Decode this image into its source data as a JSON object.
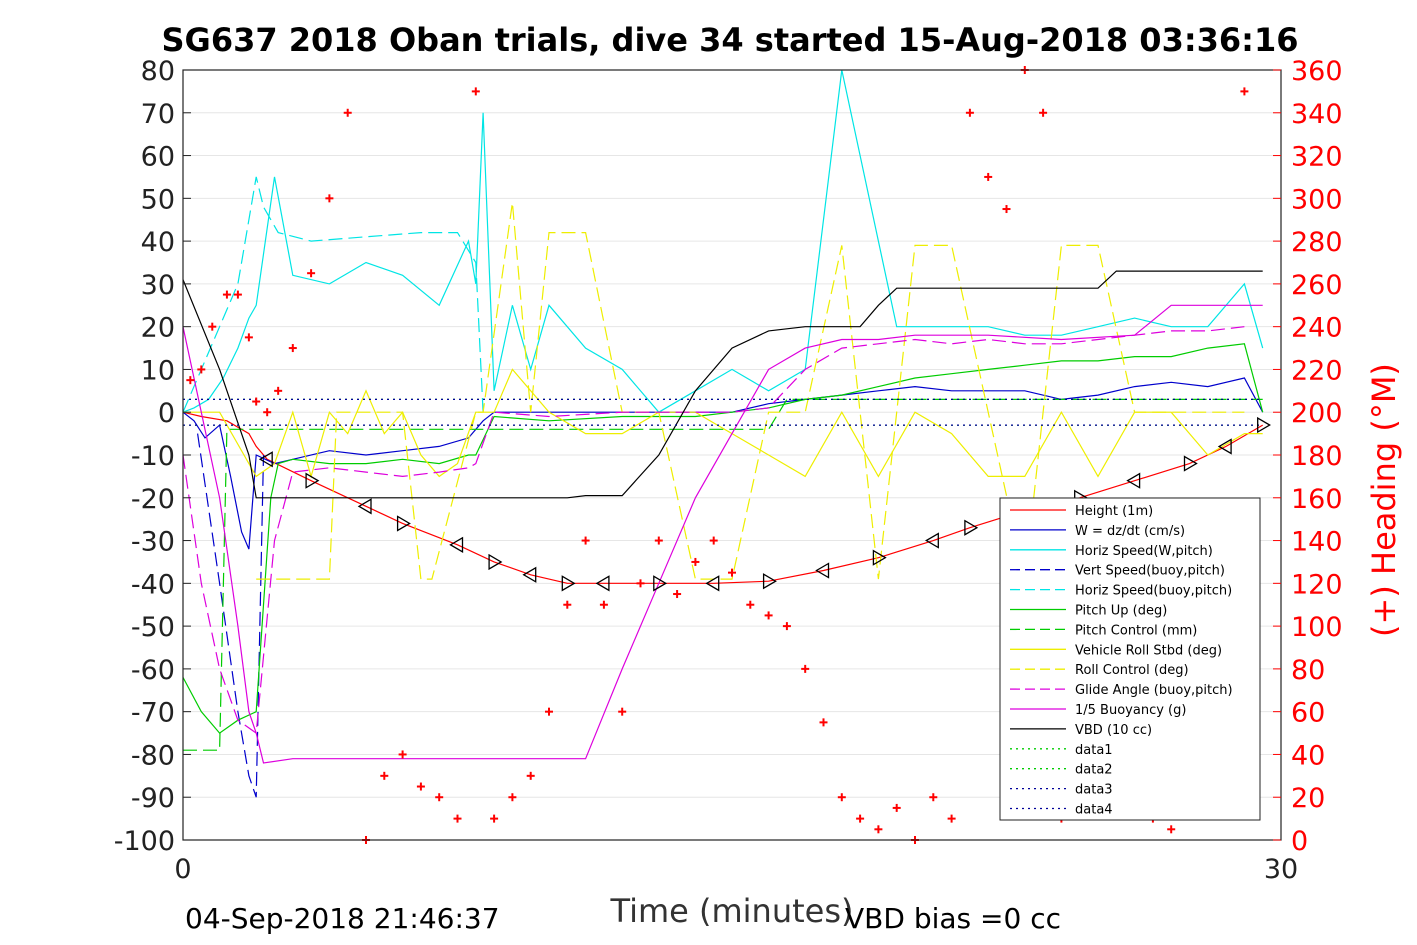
{
  "chart_data": {
    "type": "line",
    "title": "SG637 2018 Oban trials, dive 34 started 15-Aug-2018 03:36:16",
    "xlabel": "Time (minutes)",
    "ylabel": "",
    "y2label": "(+) Heading (°M)",
    "xlim": [
      0,
      30
    ],
    "ylim": [
      -100,
      80
    ],
    "y2lim": [
      0,
      360
    ],
    "xticks": [
      "0",
      "30"
    ],
    "yticks": [
      "80",
      "70",
      "60",
      "50",
      "40",
      "30",
      "20",
      "10",
      "0",
      "-10",
      "-20",
      "-30",
      "-40",
      "-50",
      "-60",
      "-70",
      "-80",
      "-90",
      "-100"
    ],
    "y2ticks": [
      "360",
      "340",
      "320",
      "300",
      "280",
      "260",
      "240",
      "220",
      "200",
      "180",
      "160",
      "140",
      "120",
      "100",
      "80",
      "60",
      "40",
      "20",
      "0"
    ],
    "grid": true,
    "legend_position": "bottom-right",
    "footer_left": "04-Sep-2018 21:46:37",
    "footer_right": "VBD bias =0 cc",
    "legend": [
      {
        "label": "Height (1m)",
        "color": "#ff0000",
        "dash": "solid"
      },
      {
        "label": "W = dz/dt (cm/s)",
        "color": "#0000cc",
        "dash": "solid"
      },
      {
        "label": "Horiz Speed(W,pitch)",
        "color": "#00e5e5",
        "dash": "solid"
      },
      {
        "label": "Vert Speed(buoy,pitch)",
        "color": "#0000cc",
        "dash": "dashed"
      },
      {
        "label": "Horiz Speed(buoy,pitch)",
        "color": "#00e5e5",
        "dash": "dashed"
      },
      {
        "label": "Pitch Up (deg)",
        "color": "#00cc00",
        "dash": "solid"
      },
      {
        "label": "Pitch Control (mm)",
        "color": "#00cc00",
        "dash": "dashed"
      },
      {
        "label": "Vehicle Roll Stbd (deg)",
        "color": "#eeee00",
        "dash": "solid"
      },
      {
        "label": "Roll Control (deg)",
        "color": "#eeee00",
        "dash": "dashed"
      },
      {
        "label": "Glide Angle (buoy,pitch)",
        "color": "#dd00dd",
        "dash": "dashed"
      },
      {
        "label": "1/5 Buoyancy (g)",
        "color": "#dd00dd",
        "dash": "solid"
      },
      {
        "label": "VBD (10 cc)",
        "color": "#000000",
        "dash": "solid"
      },
      {
        "label": "data1",
        "color": "#00cc00",
        "dash": "dotted"
      },
      {
        "label": "data2",
        "color": "#00cc00",
        "dash": "dotted"
      },
      {
        "label": "data3",
        "color": "#000099",
        "dash": "dotted"
      },
      {
        "label": "data4",
        "color": "#000099",
        "dash": "dotted"
      }
    ],
    "series": [
      {
        "name": "Height (1m)",
        "color": "#ff0000",
        "x": [
          0,
          0.5,
          1.2,
          1.8,
          2.0,
          2.3,
          3.5,
          5.0,
          6.0,
          7.5,
          8.5,
          9.5,
          10.5,
          11.5,
          13.0,
          14.5,
          16.0,
          17.5,
          19.0,
          20.5,
          21.5,
          23.0,
          24.5,
          26.0,
          27.5,
          28.5,
          29.5
        ],
        "y": [
          0,
          -1,
          -2,
          -5,
          -8,
          -11,
          -16,
          -22,
          -26,
          -31,
          -35,
          -38,
          -40,
          -40,
          -40,
          -40,
          -39.5,
          -37,
          -34,
          -30,
          -27,
          -23,
          -20,
          -16,
          -12,
          -8,
          -3
        ]
      },
      {
        "name": "W = dz/dt (cm/s)",
        "color": "#0000cc",
        "x": [
          0,
          0.3,
          0.6,
          1.0,
          1.3,
          1.6,
          1.8,
          2.0,
          2.5,
          3.0,
          4.0,
          5.0,
          6.0,
          7.0,
          7.8,
          8.2,
          8.5,
          9.0,
          10.0,
          11.0,
          12.0,
          13.0,
          14.0,
          15.0,
          16.0,
          17.0,
          18.0,
          19.0,
          20.0,
          21.0,
          22.0,
          23.0,
          24.0,
          25.0,
          26.0,
          27.0,
          28.0,
          29.0,
          29.5
        ],
        "y": [
          0,
          -2,
          -6,
          -3,
          -15,
          -28,
          -32,
          -10,
          -12,
          -11,
          -9,
          -10,
          -9,
          -8,
          -6,
          -2,
          0,
          0,
          0,
          0,
          0,
          0,
          0,
          0,
          2,
          3,
          4,
          5,
          6,
          5,
          5,
          5,
          3,
          4,
          6,
          7,
          6,
          8,
          0
        ]
      },
      {
        "name": "Horiz Speed(W,pitch)",
        "color": "#00e5e5",
        "x": [
          0,
          0.3,
          0.7,
          1.1,
          1.5,
          1.8,
          2.0,
          2.5,
          3.0,
          4.0,
          5.0,
          6.0,
          7.0,
          7.8,
          8.0,
          8.2,
          8.5,
          9.0,
          9.5,
          10.0,
          11.0,
          12.0,
          13.0,
          14.0,
          15.0,
          16.0,
          17.0,
          18.0,
          19.0,
          19.5,
          20.0,
          21.0,
          22.0,
          23.0,
          24.0,
          25.0,
          26.0,
          27.0,
          28.0,
          29.0,
          29.5
        ],
        "y": [
          0,
          1,
          3,
          8,
          15,
          22,
          25,
          55,
          32,
          30,
          35,
          32,
          25,
          40,
          30,
          70,
          5,
          25,
          10,
          25,
          15,
          10,
          0,
          5,
          10,
          5,
          10,
          80,
          40,
          20,
          20,
          20,
          20,
          18,
          18,
          20,
          22,
          20,
          20,
          30,
          15
        ]
      },
      {
        "name": "Vert Speed(buoy,pitch)",
        "color": "#0000cc",
        "x": [
          0.4,
          1.0,
          1.5,
          1.8,
          2.0,
          2.2
        ],
        "y": [
          -5,
          -40,
          -70,
          -85,
          -90,
          -10
        ]
      },
      {
        "name": "Horiz Speed(buoy,pitch)",
        "color": "#00e5e5",
        "x": [
          0,
          1.0,
          1.5,
          1.8,
          2.0,
          2.2,
          2.6,
          3.5,
          5.0,
          6.5,
          7.5,
          8.0,
          8.2
        ],
        "y": [
          0,
          20,
          30,
          45,
          55,
          48,
          42,
          40,
          41,
          42,
          42,
          35,
          0
        ]
      },
      {
        "name": "Pitch Up (deg)",
        "color": "#00cc00",
        "x": [
          0,
          0.5,
          1.0,
          1.5,
          2.0,
          2.4,
          2.6,
          3.0,
          4.0,
          5.0,
          6.0,
          7.0,
          7.8,
          8.0,
          8.5,
          10.0,
          12.0,
          14.0,
          15.0,
          16.0,
          17.0,
          18.0,
          19.0,
          20.0,
          21.0,
          22.0,
          23.0,
          24.0,
          25.0,
          26.0,
          27.0,
          28.0,
          29.0,
          29.5
        ],
        "y": [
          -62,
          -70,
          -75,
          -72,
          -70,
          -20,
          -12,
          -11,
          -12,
          -12,
          -11,
          -12,
          -10,
          -10,
          -1,
          -2,
          -1,
          -1,
          0,
          1,
          3,
          4,
          6,
          8,
          9,
          10,
          11,
          12,
          12,
          13,
          13,
          15,
          16,
          0
        ]
      },
      {
        "name": "Pitch Control (mm)",
        "color": "#00cc00",
        "x": [
          0,
          1.0,
          1.2,
          2.0,
          8.0,
          8.2,
          16.0,
          16.5,
          20.0,
          21.0,
          29.5
        ],
        "y": [
          -79,
          -79,
          -4,
          -4,
          -4,
          -4,
          -4,
          3,
          3,
          3,
          3
        ]
      },
      {
        "name": "Vehicle Roll Stbd (deg)",
        "color": "#eeee00",
        "x": [
          0,
          1.0,
          2.0,
          2.5,
          3.0,
          3.5,
          4.0,
          4.5,
          5.0,
          5.5,
          6.0,
          6.5,
          7.0,
          7.5,
          8.0,
          8.5,
          9.0,
          10.0,
          11.0,
          12.0,
          13.0,
          14.0,
          15.0,
          16.0,
          17.0,
          18.0,
          19.0,
          20.0,
          21.0,
          22.0,
          23.0,
          24.0,
          25.0,
          26.0,
          27.0,
          28.0,
          29.0,
          29.5
        ],
        "y": [
          0,
          0,
          -15,
          -12,
          0,
          -15,
          0,
          -5,
          5,
          -5,
          0,
          -10,
          -15,
          -12,
          0,
          0,
          10,
          0,
          -5,
          -5,
          0,
          0,
          -5,
          -10,
          -15,
          0,
          -15,
          0,
          -5,
          -15,
          -15,
          0,
          -15,
          0,
          0,
          -10,
          -5,
          -5
        ]
      },
      {
        "name": "Roll Control (deg)",
        "color": "#eeee00",
        "x": [
          2.0,
          2.2,
          3.5,
          4.0,
          4.2,
          6.0,
          6.5,
          6.8,
          8.0,
          8.2,
          9.0,
          9.5,
          10.0,
          10.2,
          10.5,
          11.0,
          12.0,
          13.0,
          14.0,
          15.0,
          16.0,
          17.0,
          18.0,
          19.0,
          20.0,
          21.0,
          22.0,
          23.0,
          24.0,
          25.0,
          26.0,
          26.5,
          27.0,
          28.0,
          29.0
        ],
        "y": [
          -39,
          -39,
          -39,
          -39,
          0,
          0,
          -39,
          -39,
          0,
          0,
          49,
          0,
          42,
          42,
          42,
          42,
          0,
          0,
          -39,
          -39,
          0,
          0,
          39,
          -39,
          39,
          39,
          0,
          -39,
          39,
          39,
          0,
          0,
          0,
          0,
          0
        ]
      },
      {
        "name": "Glide Angle (buoy,pitch)",
        "color": "#dd00dd",
        "x": [
          0,
          0.5,
          1.0,
          1.5,
          2.0,
          2.5,
          3.0,
          4.0,
          5.0,
          6.0,
          7.0,
          7.8,
          8.0,
          8.5,
          10.0,
          12.0,
          14.0,
          15.0,
          16.0,
          17.0,
          18.0,
          19.0,
          20.0,
          21.0,
          22.0,
          23.0,
          24.0,
          25.0,
          26.0,
          27.0,
          28.0,
          29.0
        ],
        "y": [
          -10,
          -40,
          -60,
          -72,
          -75,
          -30,
          -14,
          -13,
          -14,
          -15,
          -14,
          -13,
          -12,
          0,
          -1,
          0,
          0,
          0,
          1,
          10,
          15,
          16,
          17,
          16,
          17,
          16,
          16,
          17,
          18,
          19,
          19,
          20
        ]
      },
      {
        "name": "1/5 Buoyancy (g)",
        "color": "#dd00dd",
        "x": [
          0,
          0.5,
          1.0,
          1.5,
          1.8,
          2.0,
          2.2,
          3.0,
          5.0,
          8.0,
          10.0,
          11.0,
          12.0,
          13.0,
          14.0,
          15.0,
          16.0,
          17.0,
          18.0,
          19.0,
          20.0,
          22.0,
          24.0,
          26.0,
          27.0,
          28.0,
          29.5
        ],
        "y": [
          20,
          0,
          -20,
          -50,
          -70,
          -75,
          -82,
          -81,
          -81,
          -81,
          -81,
          -81,
          -60,
          -40,
          -20,
          -5,
          10,
          15,
          17,
          17,
          18,
          18,
          17,
          18,
          25,
          25,
          25
        ]
      },
      {
        "name": "VBD (10 cc)",
        "color": "#000000",
        "x": [
          0,
          1.0,
          1.8,
          2.0,
          2.2,
          6.0,
          8.0,
          10.0,
          10.5,
          11.0,
          12.0,
          13.0,
          14.0,
          15.0,
          16.0,
          17.0,
          18.0,
          18.5,
          19.0,
          19.5,
          20.0,
          23.0,
          24.0,
          25.0,
          25.5,
          26.0,
          27.0,
          28.0,
          29.5
        ],
        "y": [
          31,
          10,
          -10,
          -20,
          -20,
          -20,
          -20,
          -20,
          -20,
          -19.5,
          -19.5,
          -10,
          5,
          15,
          19,
          20,
          20,
          20,
          25,
          29,
          29,
          29,
          29,
          29,
          33,
          33,
          33,
          33,
          33
        ]
      },
      {
        "name": "data1",
        "color": "#00cc00",
        "x": [
          0,
          29.5
        ],
        "y": [
          3,
          3
        ]
      },
      {
        "name": "data2",
        "color": "#00cc00",
        "x": [
          0,
          29.5
        ],
        "y": [
          -3,
          -3
        ]
      },
      {
        "name": "data3",
        "color": "#000099",
        "x": [
          0,
          29.5
        ],
        "y": [
          3,
          3
        ]
      },
      {
        "name": "data4",
        "color": "#000099",
        "x": [
          0,
          29.5
        ],
        "y": [
          -3,
          -3
        ]
      }
    ],
    "heading_points": {
      "name": "(+) Heading (°M)",
      "color": "#ff0000",
      "x": [
        0.2,
        0.5,
        0.8,
        1.2,
        1.5,
        1.8,
        2.0,
        2.3,
        2.6,
        3.0,
        3.5,
        4.0,
        4.5,
        5.0,
        5.5,
        6.0,
        6.5,
        7.0,
        7.5,
        8.0,
        8.5,
        9.0,
        9.5,
        10.0,
        10.5,
        11.0,
        11.5,
        12.0,
        12.5,
        13.0,
        13.5,
        14.0,
        14.5,
        15.0,
        15.5,
        16.0,
        16.5,
        17.0,
        17.5,
        18.0,
        18.5,
        19.0,
        19.5,
        20.0,
        20.5,
        21.0,
        21.5,
        22.0,
        22.5,
        23.0,
        23.5,
        24.0,
        24.5,
        25.0,
        25.5,
        26.0,
        26.5,
        27.0,
        27.5,
        28.0,
        28.5,
        29.0
      ],
      "y": [
        215,
        220,
        240,
        255,
        255,
        235,
        205,
        200,
        210,
        230,
        265,
        300,
        340,
        0,
        30,
        40,
        25,
        20,
        10,
        350,
        10,
        20,
        30,
        60,
        110,
        140,
        110,
        60,
        120,
        140,
        115,
        130,
        140,
        125,
        110,
        105,
        100,
        80,
        55,
        20,
        10,
        5,
        15,
        0,
        20,
        10,
        340,
        310,
        295,
        360,
        340,
        10,
        20,
        60,
        40,
        15,
        10,
        5,
        30,
        40,
        20,
        350
      ]
    }
  }
}
